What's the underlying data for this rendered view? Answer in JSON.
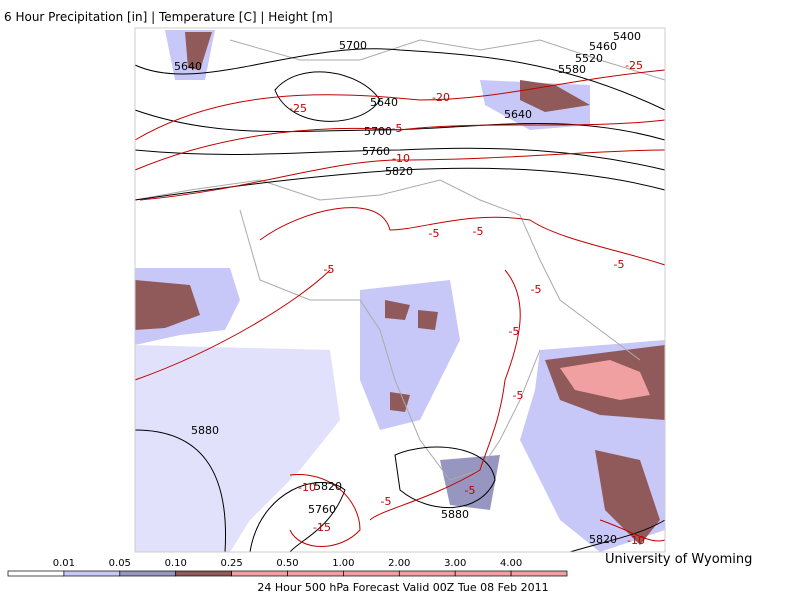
{
  "header": {
    "title": "6 Hour Precipitation [in] | Temperature [C] | Height [m]"
  },
  "map": {
    "height_labels": [
      "5700",
      "5640",
      "5640",
      "5700",
      "5760",
      "5820",
      "5400",
      "5460",
      "5520",
      "5580",
      "5640",
      "5880",
      "5820",
      "5760",
      "5880",
      "5820"
    ],
    "temperature_labels": [
      "-25",
      "-20",
      "-5",
      "-10",
      "-25",
      "-5",
      "-5",
      "-5",
      "-5",
      "-5",
      "-5",
      "-5",
      "-10",
      "-15",
      "-5",
      "-5",
      "-10"
    ],
    "height_color": "#000000",
    "temperature_color": "#c00000"
  },
  "colorbar": {
    "labels": [
      "0.01",
      "0.05",
      "0.10",
      "0.25",
      "0.50",
      "1.00",
      "2.00",
      "3.00",
      "4.00"
    ],
    "colors": [
      "#ffffff",
      "#c8c8f8",
      "#9696c0",
      "#905a5a",
      "#f0a0a0",
      "#f0a0a0",
      "#f0a0a0",
      "#f0a0a0",
      "#f0a0a0",
      "#f0a0a0"
    ]
  },
  "footer": {
    "caption": "24 Hour 500 hPa Forecast Valid 00Z Tue 08 Feb 2011",
    "credit": "University of Wyoming"
  }
}
